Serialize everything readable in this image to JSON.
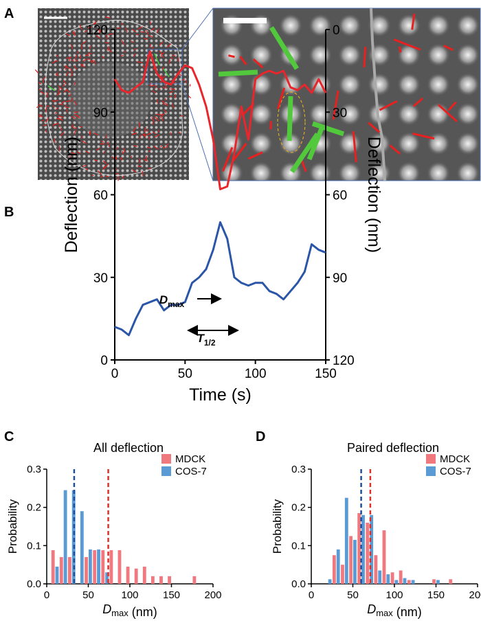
{
  "figure_a": {
    "panel": "A"
  },
  "chart_data": [
    {
      "type": "line",
      "panel": "B",
      "xlabel": "Time (s)",
      "ylabel": "Deflection (nm)",
      "y2label": "Deflection (nm)",
      "x": [
        0,
        5,
        10,
        15,
        20,
        25,
        30,
        35,
        40,
        45,
        50,
        55,
        60,
        65,
        70,
        75,
        80,
        85,
        90,
        95,
        100,
        105,
        110,
        115,
        120,
        125,
        130,
        135,
        140,
        145,
        150
      ],
      "xlim": [
        0,
        150
      ],
      "xticks": [
        0,
        50,
        100,
        150
      ],
      "ylim": [
        0,
        120
      ],
      "yticks": [
        0,
        30,
        60,
        90,
        120
      ],
      "y2lim": [
        120,
        0
      ],
      "y2ticks": [
        0,
        30,
        60,
        90,
        120
      ],
      "series": [
        {
          "color": "#e8262c",
          "axis": "y2",
          "values": [
            18,
            22,
            23,
            21,
            19,
            8,
            16,
            19,
            20,
            16,
            13,
            14,
            20,
            28,
            40,
            58,
            57,
            45,
            28,
            40,
            18,
            16,
            15,
            16,
            15,
            21,
            22,
            20,
            23,
            18,
            23
          ]
        },
        {
          "color": "#2b56a8",
          "values": [
            12,
            11,
            9,
            15,
            20,
            21,
            22,
            18,
            20,
            20,
            21,
            28,
            30,
            33,
            40,
            50,
            44,
            30,
            28,
            27,
            28,
            28,
            25,
            24,
            22,
            25,
            28,
            32,
            42,
            40,
            39
          ]
        }
      ],
      "annotations": [
        {
          "text": "D",
          "sub": "max"
        },
        {
          "text": "T",
          "sub": "1/2"
        }
      ]
    },
    {
      "type": "histogram",
      "panel": "C",
      "title": "All deflection",
      "xlabel": "D",
      "xlabel_sub": "max",
      "xlabel_unit": "(nm)",
      "ylabel": "Probability",
      "x": [
        10,
        20,
        30,
        40,
        50,
        60,
        70,
        80,
        90,
        100,
        110,
        120,
        130,
        140,
        150,
        160,
        170,
        180,
        190
      ],
      "xlim": [
        0,
        200
      ],
      "xticks": [
        0,
        50,
        100,
        150,
        200
      ],
      "ylim": [
        0,
        0.3
      ],
      "yticks": [
        {
          "value": 0,
          "label": "0.0"
        },
        0.1,
        0.2,
        0.3
      ],
      "legend": "upper right",
      "series": [
        {
          "name": "MDCK",
          "color": "#f0787f",
          "mean_color": "#e0302a",
          "mean": 74,
          "values": [
            0.088,
            0.07,
            0.07,
            0,
            0.07,
            0.088,
            0.088,
            0.088,
            0.088,
            0.045,
            0.04,
            0.045,
            0.02,
            0.02,
            0.02,
            0,
            0,
            0.02,
            0
          ]
        },
        {
          "name": "COS-7",
          "color": "#5b9bd5",
          "mean_color": "#1f4e9c",
          "mean": 33,
          "values": [
            0.045,
            0.245,
            0.245,
            0.19,
            0.09,
            0.09,
            0.03,
            0,
            0,
            0,
            0,
            0,
            0,
            0,
            0,
            0,
            0,
            0,
            0
          ]
        }
      ]
    },
    {
      "type": "histogram",
      "panel": "D",
      "title": "Paired deflection",
      "xlabel": "D",
      "xlabel_sub": "max",
      "xlabel_unit": "(nm)",
      "ylabel": "Probability",
      "x": [
        20,
        30,
        40,
        50,
        60,
        70,
        80,
        90,
        100,
        110,
        120,
        130,
        140,
        150,
        160,
        170
      ],
      "xlim": [
        0,
        200
      ],
      "xticks": [
        0,
        50,
        100,
        150,
        200
      ],
      "ylim": [
        0,
        0.3
      ],
      "yticks": [
        {
          "value": 0,
          "label": "0.0"
        },
        0.1,
        0.2,
        0.3
      ],
      "legend": "upper right",
      "series": [
        {
          "name": "MDCK",
          "color": "#f0787f",
          "mean_color": "#e0302a",
          "mean": 71,
          "values": [
            0,
            0.075,
            0.05,
            0.125,
            0.185,
            0.16,
            0.075,
            0.14,
            0.03,
            0.035,
            0.01,
            0,
            0,
            0.012,
            0,
            0.012
          ]
        },
        {
          "name": "COS-7",
          "color": "#5b9bd5",
          "mean_color": "#1f4e9c",
          "mean": 60,
          "values": [
            0.012,
            0.09,
            0.225,
            0.115,
            0.18,
            0.18,
            0.035,
            0.025,
            0.01,
            0.015,
            0.01,
            0,
            0,
            0.01,
            0,
            0
          ]
        }
      ]
    }
  ]
}
